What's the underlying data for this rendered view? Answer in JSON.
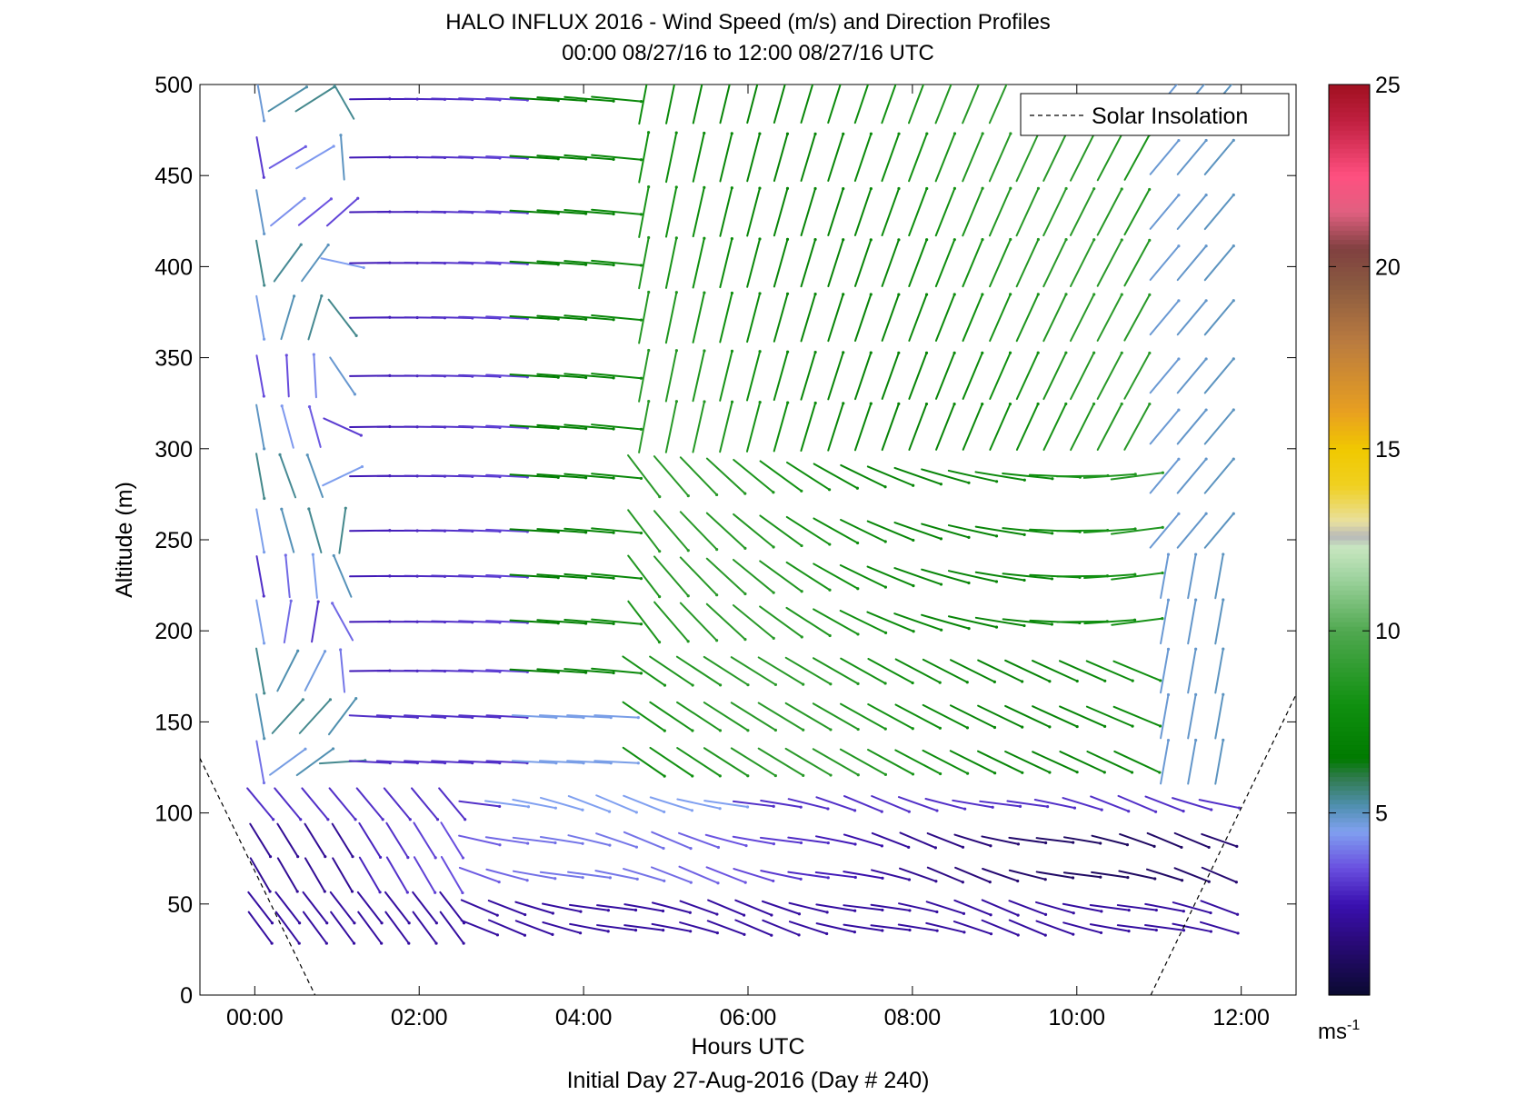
{
  "chart_data": {
    "type": "quiver",
    "title": "HALO INFLUX 2016 - Wind Speed (m/s) and Direction Profiles",
    "subtitle": "00:00 08/27/16 to 12:00 08/27/16  UTC",
    "xlabel": "Hours UTC",
    "ylabel": "Altitude (m)",
    "footer": "Initial Day 27-Aug-2016 (Day # 240)",
    "xlim": [
      -0.667,
      12.667
    ],
    "ylim": [
      0,
      500
    ],
    "xtick_values": [
      0,
      2,
      4,
      6,
      8,
      10,
      12
    ],
    "xtick_labels": [
      "00:00",
      "02:00",
      "04:00",
      "06:00",
      "08:00",
      "10:00",
      "12:00"
    ],
    "ytick_values": [
      0,
      50,
      100,
      150,
      200,
      250,
      300,
      350,
      400,
      450,
      500
    ],
    "ytick_labels": [
      "0",
      "50",
      "100",
      "150",
      "200",
      "250",
      "300",
      "350",
      "400",
      "450",
      "500"
    ],
    "legend": {
      "label": "Solar Insolation",
      "placement": "top-right"
    },
    "colorbar": {
      "range": [
        0,
        25
      ],
      "tick_values": [
        5,
        10,
        15,
        20,
        25
      ],
      "tick_labels": [
        "5",
        "10",
        "15",
        "20",
        "25"
      ],
      "unit_base": "ms",
      "unit_exp": "-1",
      "stops": [
        [
          0.0,
          "#0a0a30"
        ],
        [
          1.5,
          "#2a0a7a"
        ],
        [
          2.5,
          "#3a10b0"
        ],
        [
          3.5,
          "#6a50e0"
        ],
        [
          4.5,
          "#80a0f0"
        ],
        [
          5.2,
          "#5090b0"
        ],
        [
          6.0,
          "#2e7a4a"
        ],
        [
          6.5,
          "#007a00"
        ],
        [
          8.0,
          "#109010"
        ],
        [
          10.0,
          "#50a850"
        ],
        [
          11.5,
          "#a0d4a0"
        ],
        [
          12.3,
          "#c8e6c0"
        ],
        [
          12.6,
          "#b8b8b8"
        ],
        [
          13.0,
          "#e8e0a0"
        ],
        [
          14.0,
          "#f0d020"
        ],
        [
          15.0,
          "#f0c800"
        ],
        [
          16.0,
          "#e8a020"
        ],
        [
          18.0,
          "#b87a40"
        ],
        [
          19.5,
          "#8a5a40"
        ],
        [
          20.5,
          "#804040"
        ],
        [
          21.5,
          "#e06080"
        ],
        [
          22.5,
          "#ff5080"
        ],
        [
          24.0,
          "#c02040"
        ],
        [
          25.0,
          "#a01020"
        ]
      ]
    },
    "solar_insolation": {
      "segments": [
        [
          [
            -0.667,
            130
          ],
          [
            0.733,
            0
          ]
        ],
        [
          [
            10.9,
            0
          ],
          [
            12.667,
            165
          ]
        ]
      ]
    },
    "wind_grid": {
      "times": [
        0.067,
        0.4,
        0.733,
        1.067,
        1.4,
        1.733,
        2.067,
        2.4,
        2.733,
        3.067,
        3.4,
        3.733,
        4.067,
        4.4,
        4.733,
        5.067,
        5.4,
        5.733,
        6.067,
        6.4,
        6.733,
        7.067,
        7.4,
        7.733,
        8.067,
        8.4,
        8.733,
        9.067,
        9.4,
        9.733,
        10.067,
        10.4,
        10.733,
        11.067,
        11.4,
        11.733
      ],
      "altitudes": [
        37,
        48,
        66,
        85,
        105,
        128,
        153,
        178,
        205,
        230,
        255,
        285,
        312,
        340,
        372,
        402,
        430,
        460,
        492
      ],
      "note_units": "direction in degrees (meteorological, from), speed in m/s"
    }
  }
}
